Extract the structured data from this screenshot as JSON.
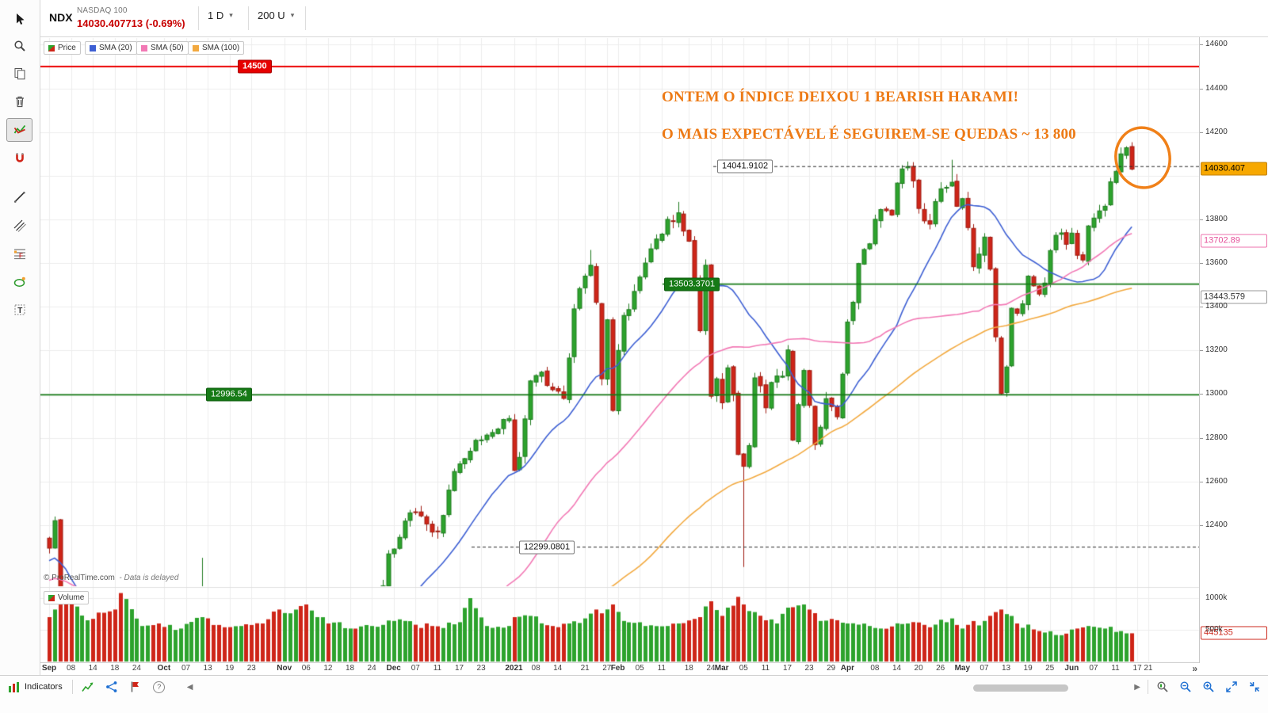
{
  "header": {
    "symbol": "NDX",
    "instrument": "NASDAQ 100",
    "price": "14030.407713",
    "change": "(-0.69%)",
    "timeframe": "1 D",
    "zoom": "200 U"
  },
  "legend": {
    "price": "Price",
    "sma20": "SMA (20)",
    "sma50": "SMA (50)",
    "sma100": "SMA (100)"
  },
  "volume_pane": {
    "legend": "Volume",
    "ticks": [
      {
        "label": "1000k",
        "value": 1000
      },
      {
        "label": "500k",
        "value": 500
      }
    ],
    "last_tag": {
      "label": "445135",
      "value": 445.135
    }
  },
  "annotations": {
    "line1": "ONTEM O ÍNDICE DEIXOU 1 BEARISH HARAMI!",
    "line2": "O MAIS EXPECTÁVEL É SEGUIREM-SE QUEDAS ~ 13 800"
  },
  "levels": {
    "resistance": {
      "label": "14500",
      "price": 14500
    },
    "swing_high": {
      "label": "14041.9102",
      "price": 14041.9102
    },
    "support_mid": {
      "label": "13503.3701",
      "price": 13503.3701
    },
    "support_low": {
      "label": "12996.54",
      "price": 12996.54
    },
    "swing_low": {
      "label": "12299.0801",
      "price": 12299.0801
    }
  },
  "price_axis": {
    "ticks": [
      {
        "label": "14600",
        "price": 14600
      },
      {
        "label": "14400",
        "price": 14400
      },
      {
        "label": "14200",
        "price": 14200
      },
      {
        "label": "13800",
        "price": 13800
      },
      {
        "label": "13600",
        "price": 13600
      },
      {
        "label": "13400",
        "price": 13400
      },
      {
        "label": "13200",
        "price": 13200
      },
      {
        "label": "13000",
        "price": 13000
      },
      {
        "label": "12800",
        "price": 12800
      },
      {
        "label": "12600",
        "price": 12600
      },
      {
        "label": "12400",
        "price": 12400
      }
    ],
    "last_tag": {
      "label": "14030.407",
      "price": 14030.407713
    },
    "sma50_tag": {
      "label": "13702.89",
      "price": 13702.89
    },
    "sma100_tag": {
      "label": "13443.579",
      "price": 13443.579
    }
  },
  "time_axis": {
    "labels": [
      {
        "t": "Sep",
        "i": 0,
        "m": 1
      },
      {
        "t": "08",
        "i": 4
      },
      {
        "t": "14",
        "i": 8
      },
      {
        "t": "18",
        "i": 12
      },
      {
        "t": "24",
        "i": 16
      },
      {
        "t": "Oct",
        "i": 21,
        "m": 1
      },
      {
        "t": "07",
        "i": 25
      },
      {
        "t": "13",
        "i": 29
      },
      {
        "t": "19",
        "i": 33
      },
      {
        "t": "23",
        "i": 37
      },
      {
        "t": "Nov",
        "i": 43,
        "m": 1
      },
      {
        "t": "06",
        "i": 47
      },
      {
        "t": "12",
        "i": 51
      },
      {
        "t": "18",
        "i": 55
      },
      {
        "t": "24",
        "i": 59
      },
      {
        "t": "Dec",
        "i": 63,
        "m": 1
      },
      {
        "t": "07",
        "i": 67
      },
      {
        "t": "11",
        "i": 71
      },
      {
        "t": "17",
        "i": 75
      },
      {
        "t": "23",
        "i": 79
      },
      {
        "t": "2021",
        "i": 85,
        "m": 1
      },
      {
        "t": "08",
        "i": 89
      },
      {
        "t": "14",
        "i": 93
      },
      {
        "t": "21",
        "i": 98
      },
      {
        "t": "27",
        "i": 102
      },
      {
        "t": "Feb",
        "i": 104,
        "m": 1
      },
      {
        "t": "05",
        "i": 108
      },
      {
        "t": "11",
        "i": 112
      },
      {
        "t": "18",
        "i": 117
      },
      {
        "t": "24",
        "i": 121
      },
      {
        "t": "Mar",
        "i": 123,
        "m": 1
      },
      {
        "t": "05",
        "i": 127
      },
      {
        "t": "11",
        "i": 131
      },
      {
        "t": "17",
        "i": 135
      },
      {
        "t": "23",
        "i": 139
      },
      {
        "t": "29",
        "i": 143
      },
      {
        "t": "Apr",
        "i": 146,
        "m": 1
      },
      {
        "t": "08",
        "i": 151
      },
      {
        "t": "14",
        "i": 155
      },
      {
        "t": "20",
        "i": 159
      },
      {
        "t": "26",
        "i": 163
      },
      {
        "t": "May",
        "i": 167,
        "m": 1
      },
      {
        "t": "07",
        "i": 171
      },
      {
        "t": "13",
        "i": 175
      },
      {
        "t": "19",
        "i": 179
      },
      {
        "t": "25",
        "i": 183
      },
      {
        "t": "Jun",
        "i": 187,
        "m": 1
      },
      {
        "t": "07",
        "i": 191
      },
      {
        "t": "11",
        "i": 195
      },
      {
        "t": "17",
        "i": 199
      },
      {
        "t": "21",
        "i": 201
      }
    ]
  },
  "watermark": {
    "brand": "© ProRealTime.com",
    "note": "-  Data is delayed"
  },
  "footer": {
    "indicators": "Indicators"
  },
  "icons": {
    "prev": "◀",
    "next": "▶",
    "jump_end": "»",
    "help": "?",
    "caret": "▾"
  },
  "colors": {
    "up": "#2da32d",
    "up_border": "#1e7a1e",
    "down": "#ce2518",
    "down_border": "#9e1b10",
    "sma20": "#3d5fd3",
    "sma50": "#f279b5",
    "sma100": "#f2a93f",
    "resistance": "#ec0000",
    "support": "#167a16",
    "dashed": "#2a2a2a",
    "grid": "#ededed",
    "annotation": "#ed7a15",
    "circle": "#f08018"
  },
  "chart_data": {
    "type": "candlestick",
    "symbol": "NDX",
    "period": "daily",
    "days": 199,
    "visible_price_range": [
      12120,
      14660
    ],
    "sma_periods": [
      20,
      50,
      100
    ],
    "close_anchors": [
      [
        0,
        12294
      ],
      [
        1,
        12420
      ],
      [
        2,
        11771
      ],
      [
        3,
        11622
      ],
      [
        4,
        11310
      ],
      [
        7,
        11720
      ],
      [
        9,
        11468
      ],
      [
        12,
        10958
      ],
      [
        13,
        10936
      ],
      [
        15,
        11310
      ],
      [
        18,
        11418
      ],
      [
        20,
        11232
      ],
      [
        21,
        11160
      ],
      [
        23,
        11354
      ],
      [
        26,
        11725
      ],
      [
        28,
        12088
      ],
      [
        31,
        11863
      ],
      [
        33,
        11700
      ],
      [
        35,
        11769
      ],
      [
        37,
        11548
      ],
      [
        39,
        11236
      ],
      [
        42,
        11052
      ],
      [
        43,
        11240
      ],
      [
        44,
        11590
      ],
      [
        45,
        12060
      ],
      [
        46,
        11937
      ],
      [
        47,
        11600
      ],
      [
        49,
        11840
      ],
      [
        52,
        11890
      ],
      [
        55,
        12010
      ],
      [
        57,
        11986
      ],
      [
        59,
        12080
      ],
      [
        61,
        12122
      ],
      [
        62,
        12268
      ],
      [
        63,
        12290
      ],
      [
        65,
        12418
      ],
      [
        67,
        12460
      ],
      [
        69,
        12405
      ],
      [
        71,
        12370
      ],
      [
        73,
        12560
      ],
      [
        75,
        12680
      ],
      [
        77,
        12738
      ],
      [
        79,
        12790
      ],
      [
        82,
        12840
      ],
      [
        84,
        12888
      ],
      [
        85,
        12650
      ],
      [
        86,
        12710
      ],
      [
        88,
        13060
      ],
      [
        90,
        13100
      ],
      [
        92,
        13020
      ],
      [
        94,
        12980
      ],
      [
        96,
        13390
      ],
      [
        98,
        13540
      ],
      [
        99,
        13590
      ],
      [
        100,
        13420
      ],
      [
        101,
        13070
      ],
      [
        102,
        13340
      ],
      [
        103,
        12925
      ],
      [
        104,
        13200
      ],
      [
        105,
        13360
      ],
      [
        107,
        13470
      ],
      [
        109,
        13600
      ],
      [
        111,
        13710
      ],
      [
        113,
        13800
      ],
      [
        114,
        13790
      ],
      [
        115,
        13830
      ],
      [
        117,
        13700
      ],
      [
        118,
        13520
      ],
      [
        119,
        13290
      ],
      [
        120,
        13590
      ],
      [
        121,
        12990
      ],
      [
        122,
        13070
      ],
      [
        123,
        12960
      ],
      [
        124,
        13120
      ],
      [
        125,
        12997
      ],
      [
        126,
        12723
      ],
      [
        127,
        12669
      ],
      [
        128,
        12764
      ],
      [
        129,
        13074
      ],
      [
        131,
        12937
      ],
      [
        132,
        13053
      ],
      [
        134,
        13082
      ],
      [
        135,
        13202
      ],
      [
        136,
        12789
      ],
      [
        138,
        13108
      ],
      [
        140,
        12768
      ],
      [
        142,
        12979
      ],
      [
        144,
        12896
      ],
      [
        145,
        13091
      ],
      [
        146,
        13330
      ],
      [
        148,
        13598
      ],
      [
        150,
        13688
      ],
      [
        152,
        13845
      ],
      [
        154,
        13820
      ],
      [
        156,
        14031
      ],
      [
        157,
        14042
      ],
      [
        159,
        13850
      ],
      [
        161,
        13778
      ],
      [
        163,
        13940
      ],
      [
        165,
        13970
      ],
      [
        166,
        13860
      ],
      [
        167,
        13895
      ],
      [
        169,
        13583
      ],
      [
        171,
        13719
      ],
      [
        172,
        13572
      ],
      [
        173,
        13262
      ],
      [
        174,
        13002
      ],
      [
        175,
        13124
      ],
      [
        176,
        13393
      ],
      [
        177,
        13370
      ],
      [
        179,
        13540
      ],
      [
        181,
        13458
      ],
      [
        183,
        13657
      ],
      [
        185,
        13738
      ],
      [
        186,
        13686
      ],
      [
        187,
        13737
      ],
      [
        189,
        13614
      ],
      [
        190,
        13770
      ],
      [
        191,
        13806
      ],
      [
        192,
        13839
      ],
      [
        193,
        13860
      ],
      [
        194,
        13972
      ],
      [
        195,
        14020
      ],
      [
        196,
        14100
      ],
      [
        197,
        14128
      ],
      [
        198,
        14030.41
      ]
    ],
    "wick_overrides": {
      "1": {
        "high": 12439
      },
      "13": {
        "low": 10677
      },
      "28": {
        "high": 12250
      },
      "47": {
        "high": 12108
      },
      "99": {
        "high": 13660
      },
      "115": {
        "high": 13880
      },
      "127": {
        "low": 12208
      },
      "157": {
        "high": 14065
      },
      "165": {
        "high": 14073
      },
      "197": {
        "high": 14135
      }
    },
    "volume_anchors_k": [
      [
        0,
        700
      ],
      [
        1,
        820
      ],
      [
        2,
        900
      ],
      [
        3,
        1050
      ],
      [
        7,
        650
      ],
      [
        12,
        820
      ],
      [
        13,
        1080
      ],
      [
        17,
        560
      ],
      [
        20,
        600
      ],
      [
        24,
        520
      ],
      [
        28,
        700
      ],
      [
        32,
        540
      ],
      [
        35,
        560
      ],
      [
        39,
        600
      ],
      [
        42,
        820
      ],
      [
        44,
        760
      ],
      [
        47,
        900
      ],
      [
        51,
        600
      ],
      [
        55,
        520
      ],
      [
        59,
        560
      ],
      [
        63,
        640
      ],
      [
        67,
        580
      ],
      [
        70,
        560
      ],
      [
        75,
        620
      ],
      [
        77,
        1000
      ],
      [
        80,
        560
      ],
      [
        84,
        560
      ],
      [
        85,
        700
      ],
      [
        88,
        720
      ],
      [
        92,
        560
      ],
      [
        95,
        600
      ],
      [
        98,
        680
      ],
      [
        100,
        820
      ],
      [
        101,
        760
      ],
      [
        103,
        900
      ],
      [
        105,
        640
      ],
      [
        109,
        560
      ],
      [
        113,
        560
      ],
      [
        115,
        600
      ],
      [
        119,
        700
      ],
      [
        121,
        950
      ],
      [
        123,
        720
      ],
      [
        125,
        880
      ],
      [
        126,
        1020
      ],
      [
        127,
        900
      ],
      [
        129,
        780
      ],
      [
        133,
        600
      ],
      [
        135,
        850
      ],
      [
        138,
        900
      ],
      [
        141,
        640
      ],
      [
        146,
        600
      ],
      [
        150,
        560
      ],
      [
        152,
        520
      ],
      [
        157,
        600
      ],
      [
        161,
        540
      ],
      [
        165,
        680
      ],
      [
        167,
        520
      ],
      [
        171,
        640
      ],
      [
        173,
        780
      ],
      [
        174,
        820
      ],
      [
        177,
        600
      ],
      [
        181,
        480
      ],
      [
        186,
        440
      ],
      [
        188,
        520
      ],
      [
        190,
        560
      ],
      [
        193,
        520
      ],
      [
        196,
        480
      ],
      [
        198,
        445
      ]
    ]
  }
}
